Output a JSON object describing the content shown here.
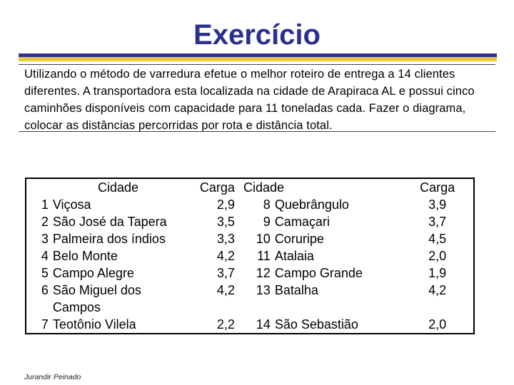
{
  "slide": {
    "title": "Exercício",
    "intro": "Utilizando o método de varredura efetue o melhor roteiro de entrega a 14 clientes diferentes. A transportadora esta localizada na cidade de Arapiraca AL e possui cinco caminhões disponíveis com capacidade para 11 toneladas cada. Fazer o diagrama, colocar as distâncias percorridas por rota e distância total.",
    "footer": "Jurandir Peinado"
  },
  "table": {
    "headers": {
      "city": "Cidade",
      "load": "Carga"
    },
    "rows": [
      {
        "n1": "1",
        "c1": "Viçosa",
        "l1": "2,9",
        "n2": "8",
        "c2": "Quebrângulo",
        "l2": "3,9"
      },
      {
        "n1": "2",
        "c1": "São José da Tapera",
        "l1": "3,5",
        "n2": "9",
        "c2": "Camaçari",
        "l2": "3,7"
      },
      {
        "n1": "3",
        "c1": "Palmeira dos índios",
        "l1": "3,3",
        "n2": "10",
        "c2": "Coruripe",
        "l2": "4,5"
      },
      {
        "n1": "4",
        "c1": "Belo Monte",
        "l1": "4,2",
        "n2": "11",
        "c2": "Atalaia",
        "l2": "2,0"
      },
      {
        "n1": "5",
        "c1": "Campo Alegre",
        "l1": "3,7",
        "n2": "12",
        "c2": "Campo Grande",
        "l2": "1,9"
      },
      {
        "n1": "6",
        "c1": "São Miguel dos",
        "l1": "4,2",
        "n2": "13",
        "c2": "Batalha",
        "l2": "4,2"
      },
      {
        "n1": "",
        "c1": "Campos",
        "l1": "",
        "n2": "",
        "c2": "",
        "l2": ""
      },
      {
        "n1": "7",
        "c1": "Teotônio Vilela",
        "l1": "2,2",
        "n2": "14",
        "c2": "São Sebastião",
        "l2": "2,0"
      }
    ]
  },
  "colors": {
    "title": "#2b2f8f",
    "rule_blue": "#2e3192",
    "rule_gold": "#e6c84a"
  }
}
